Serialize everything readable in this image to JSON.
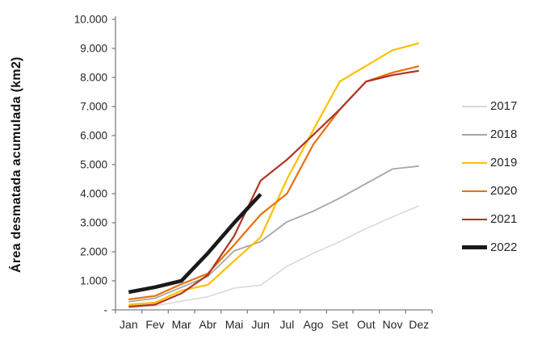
{
  "chart_data": {
    "type": "line",
    "title": "",
    "xlabel": "",
    "ylabel": "Área desmatada acumulada (km2)",
    "ylim": [
      0,
      10000
    ],
    "grid": false,
    "legend_position": "right",
    "categories": [
      "Jan",
      "Fev",
      "Mar",
      "Abr",
      "Mai",
      "Jun",
      "Jul",
      "Ago",
      "Set",
      "Out",
      "Nov",
      "Dez"
    ],
    "y_tick_labels": [
      "10.000",
      "9.000",
      "8.000",
      "7.000",
      "6.000",
      "5.000",
      "4.000",
      "3.000",
      "2.000",
      "1.000",
      "-"
    ],
    "axis_color": "#808080",
    "series": [
      {
        "name": "2017",
        "color": "#d9d9d9",
        "line_width": 1.6,
        "values": [
          80,
          140,
          300,
          450,
          750,
          850,
          1500,
          1950,
          2350,
          2800,
          3200,
          3580
        ]
      },
      {
        "name": "2018",
        "color": "#a6a6a6",
        "line_width": 1.8,
        "values": [
          280,
          400,
          780,
          1150,
          2030,
          2350,
          3030,
          3400,
          3850,
          4350,
          4850,
          4950
        ]
      },
      {
        "name": "2019",
        "color": "#ffc000",
        "line_width": 2.2,
        "values": [
          180,
          250,
          670,
          860,
          1690,
          2500,
          4500,
          6200,
          7860,
          8400,
          8940,
          9180
        ]
      },
      {
        "name": "2020",
        "color": "#e8710a",
        "line_width": 2.2,
        "values": [
          360,
          480,
          890,
          1250,
          2240,
          3280,
          4000,
          5700,
          6900,
          7860,
          8170,
          8390
        ]
      },
      {
        "name": "2021",
        "color": "#b13224",
        "line_width": 2.2,
        "values": [
          110,
          180,
          570,
          1200,
          2550,
          4450,
          5170,
          6030,
          6900,
          7860,
          8080,
          8230
        ]
      },
      {
        "name": "2022",
        "color": "#1a1a1a",
        "line_width": 4.6,
        "values": [
          610,
          780,
          1000,
          1950,
          3000,
          3980
        ]
      }
    ]
  }
}
